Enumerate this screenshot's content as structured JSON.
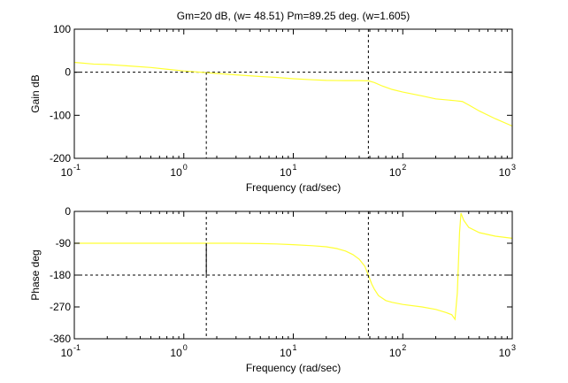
{
  "chart_data": [
    {
      "type": "line",
      "title": "Gm=20 dB, (w= 48.51)   Pm=89.25 deg. (w=1.605)",
      "xlabel": "Frequency (rad/sec)",
      "ylabel": "Gain dB",
      "xscale": "log",
      "xlim": [
        0.1,
        1000
      ],
      "ylim": [
        -200,
        100
      ],
      "xticks": [
        0.1,
        1,
        10,
        100,
        1000
      ],
      "xtick_bases": [
        "10",
        "10",
        "10",
        "10",
        "10"
      ],
      "xtick_exponents": [
        "-1",
        "0",
        "1",
        "2",
        "3"
      ],
      "yticks": [
        -200,
        -100,
        0,
        100
      ],
      "ytick_labels": [
        "-200",
        "-100",
        "0",
        "100"
      ],
      "line_color": "#ffff33",
      "reference_lines": {
        "horizontal": [
          0
        ],
        "vertical": [
          1.605,
          48.51
        ]
      },
      "series": [
        {
          "x": [
            0.1,
            0.15,
            0.2,
            0.3,
            0.5,
            0.7,
            1.0,
            1.605,
            2,
            3,
            5,
            7,
            10,
            15,
            20,
            30,
            40,
            48.51,
            55,
            65,
            80,
            100,
            150,
            200,
            300,
            350,
            400,
            500,
            700,
            1000
          ],
          "y": [
            23,
            19,
            18,
            15,
            11,
            7,
            3,
            -1,
            -3,
            -6,
            -10,
            -12,
            -15,
            -17.5,
            -19,
            -19.5,
            -19.5,
            -20,
            -24,
            -32,
            -40,
            -46,
            -55,
            -62,
            -66,
            -68,
            -76,
            -90,
            -108,
            -125
          ]
        }
      ]
    },
    {
      "type": "line",
      "title": "",
      "xlabel": "Frequency (rad/sec)",
      "ylabel": "Phase deg",
      "xscale": "log",
      "xlim": [
        0.1,
        1000
      ],
      "ylim": [
        -360,
        0
      ],
      "xticks": [
        0.1,
        1,
        10,
        100,
        1000
      ],
      "xtick_bases": [
        "10",
        "10",
        "10",
        "10",
        "10"
      ],
      "xtick_exponents": [
        "-1",
        "0",
        "1",
        "2",
        "3"
      ],
      "yticks": [
        -360,
        -270,
        -180,
        -90,
        0
      ],
      "ytick_labels": [
        "-360",
        "-270",
        "-180",
        "-90",
        "0"
      ],
      "line_color": "#ffff33",
      "reference_lines": {
        "horizontal": [
          -180
        ],
        "vertical": [
          1.605,
          48.51
        ]
      },
      "margin_marker": {
        "x": 1.605,
        "y_from": -180,
        "y_to": -90.75
      },
      "series": [
        {
          "x": [
            0.1,
            0.5,
            1,
            1.605,
            3,
            5,
            7,
            10,
            15,
            20,
            25,
            30,
            35,
            40,
            45,
            48.51,
            52,
            55,
            60,
            70,
            80,
            100,
            150,
            200,
            250,
            280,
            300,
            315,
            330,
            340,
            360,
            400,
            500,
            700,
            1000
          ],
          "y": [
            -90,
            -90,
            -90,
            -90,
            -90,
            -91,
            -92,
            -94,
            -97,
            -100,
            -105,
            -112,
            -122,
            -135,
            -155,
            -180,
            -205,
            -220,
            -238,
            -252,
            -257,
            -263,
            -270,
            -277,
            -286,
            -292,
            -305,
            -230,
            -60,
            -5,
            -25,
            -45,
            -60,
            -70,
            -76
          ]
        }
      ]
    }
  ]
}
